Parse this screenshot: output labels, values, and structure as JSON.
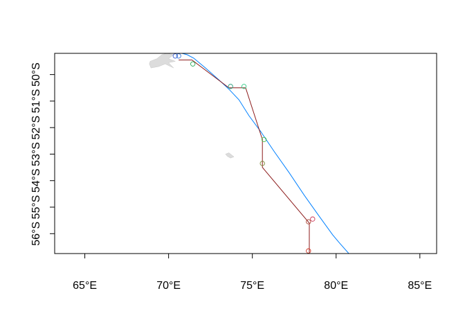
{
  "chart_data": {
    "type": "map",
    "xlim": [
      63.2,
      86.0
    ],
    "ylim": [
      -56.75,
      -49.2
    ],
    "x_ticks": [
      {
        "value": 65,
        "label": "65°E"
      },
      {
        "value": 70,
        "label": "70°E"
      },
      {
        "value": 75,
        "label": "75°E"
      },
      {
        "value": 80,
        "label": "80°E"
      },
      {
        "value": 85,
        "label": "85°E"
      }
    ],
    "y_ticks": [
      {
        "value": -50,
        "label": "50°S"
      },
      {
        "value": -51,
        "label": "51°S"
      },
      {
        "value": -52,
        "label": "52°S"
      },
      {
        "value": -53,
        "label": "53°S"
      },
      {
        "value": -54,
        "label": "54°S"
      },
      {
        "value": -55,
        "label": "55°S"
      },
      {
        "value": -56,
        "label": "56°S"
      }
    ],
    "islands": [
      {
        "name": "kerguelen",
        "fill": "#dcdcdc",
        "coords": [
          [
            68.9,
            -49.5
          ],
          [
            69.3,
            -49.4
          ],
          [
            69.6,
            -49.25
          ],
          [
            69.9,
            -49.2
          ],
          [
            70.3,
            -49.25
          ],
          [
            70.0,
            -49.4
          ],
          [
            70.4,
            -49.5
          ],
          [
            70.0,
            -49.55
          ],
          [
            70.3,
            -49.75
          ],
          [
            69.8,
            -49.6
          ],
          [
            69.4,
            -49.7
          ],
          [
            68.95,
            -49.75
          ],
          [
            68.85,
            -49.6
          ]
        ]
      },
      {
        "name": "heard",
        "fill": "#dcdcdc",
        "coords": [
          [
            73.4,
            -53.0
          ],
          [
            73.6,
            -52.95
          ],
          [
            73.9,
            -53.1
          ],
          [
            73.7,
            -53.15
          ],
          [
            73.5,
            -53.08
          ]
        ]
      }
    ],
    "series": [
      {
        "color": "#0080ff",
        "coords": [
          [
            70.8,
            -49.2
          ],
          [
            71.1,
            -49.25
          ],
          [
            71.5,
            -49.38
          ],
          [
            72.2,
            -49.75
          ],
          [
            73.0,
            -50.2
          ],
          [
            73.6,
            -50.55
          ],
          [
            74.2,
            -50.95
          ],
          [
            74.8,
            -51.55
          ],
          [
            75.5,
            -52.15
          ],
          [
            76.3,
            -52.9
          ],
          [
            77.2,
            -53.7
          ],
          [
            78.1,
            -54.55
          ],
          [
            79.0,
            -55.35
          ],
          [
            79.8,
            -56.05
          ],
          [
            80.2,
            -56.35
          ],
          [
            80.9,
            -56.85
          ]
        ]
      },
      {
        "color": "#8b1a1a",
        "coords": [
          [
            70.6,
            -49.45
          ],
          [
            71.4,
            -49.45
          ],
          [
            73.6,
            -50.5
          ],
          [
            74.6,
            -50.5
          ],
          [
            75.6,
            -52.45
          ],
          [
            75.6,
            -53.5
          ],
          [
            78.4,
            -55.6
          ],
          [
            78.4,
            -56.75
          ]
        ]
      }
    ],
    "markers": [
      {
        "lon": 70.4,
        "lat": -49.3,
        "color": "#3355cc"
      },
      {
        "lon": 70.6,
        "lat": -49.3,
        "color": "#3377dd"
      },
      {
        "lon": 71.45,
        "lat": -49.6,
        "color": "#22aa55"
      },
      {
        "lon": 73.7,
        "lat": -50.45,
        "color": "#229977"
      },
      {
        "lon": 74.5,
        "lat": -50.45,
        "color": "#33cc88"
      },
      {
        "lon": 75.7,
        "lat": -52.45,
        "color": "#44bb44"
      },
      {
        "lon": 75.6,
        "lat": -53.35,
        "color": "#778833"
      },
      {
        "lon": 78.6,
        "lat": -55.45,
        "color": "#cc3355"
      },
      {
        "lon": 78.35,
        "lat": -55.55,
        "color": "#aa4433"
      },
      {
        "lon": 78.35,
        "lat": -56.65,
        "color": "#cc3322"
      }
    ]
  }
}
